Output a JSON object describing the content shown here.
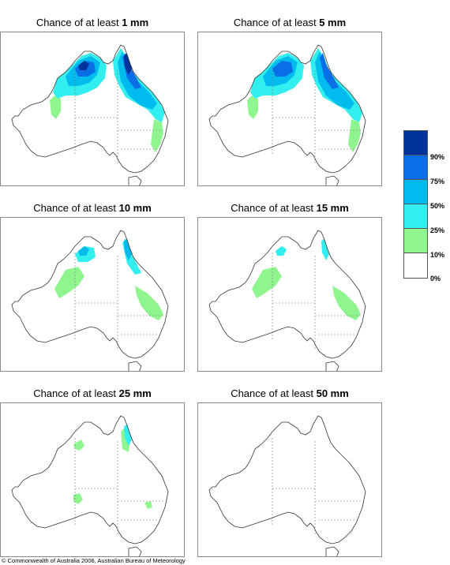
{
  "panels": [
    {
      "prefix": "Chance of at least ",
      "amount": "1 mm"
    },
    {
      "prefix": "Chance of at least ",
      "amount": "5 mm"
    },
    {
      "prefix": "Chance of at least ",
      "amount": "10 mm"
    },
    {
      "prefix": "Chance of at least ",
      "amount": "15 mm"
    },
    {
      "prefix": "Chance of at least ",
      "amount": "25 mm"
    },
    {
      "prefix": "Chance of at least ",
      "amount": "50 mm"
    }
  ],
  "legend": {
    "labels": [
      "90%",
      "75%",
      "50%",
      "25%",
      "10%",
      "0%"
    ],
    "colors": [
      "#003399",
      "#0a6fe6",
      "#00bbee",
      "#33eeee",
      "#8ff58f",
      "#ffffff"
    ]
  },
  "copyright": "© Commonwealth of Australia 2006, Australian Bureau of Meteorology"
}
